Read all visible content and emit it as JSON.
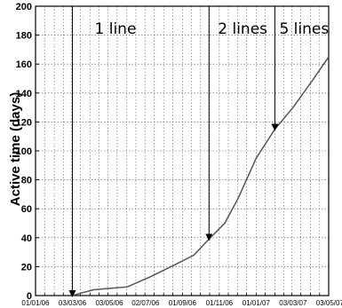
{
  "chart_data": {
    "type": "line",
    "title": "",
    "xlabel": "",
    "ylabel": "Active time (days)",
    "ylim": [
      0,
      200
    ],
    "yticks": [
      0,
      20,
      40,
      60,
      80,
      100,
      120,
      140,
      160,
      180,
      200
    ],
    "xlim": [
      "2006-01-01",
      "2007-05-01"
    ],
    "xtick_labels": [
      "01/01/06",
      "03/03/06",
      "03/05/06",
      "02/07/06",
      "01/09/06",
      "01/11/06",
      "01/01/07",
      "03/03/07",
      "03/05/07"
    ],
    "xtick_dates": [
      "2006-01-01",
      "2006-03-03",
      "2006-05-03",
      "2006-07-02",
      "2006-09-01",
      "2006-11-01",
      "2007-01-01",
      "2007-03-03",
      "2007-05-03"
    ],
    "grid": true,
    "series": [
      {
        "color": "#555555",
        "x": [
          "2006-03-03",
          "2006-03-20",
          "2006-04-07",
          "2006-05-03",
          "2006-06-02",
          "2006-07-10",
          "2006-08-18",
          "2006-09-20",
          "2006-10-15",
          "2006-11-10",
          "2006-12-02",
          "2007-01-01",
          "2007-02-01",
          "2007-03-03",
          "2007-04-03",
          "2007-05-01"
        ],
        "y": [
          0,
          2,
          4,
          5,
          6,
          13,
          21,
          28,
          39,
          50,
          67,
          95,
          115,
          130,
          148,
          165
        ]
      }
    ],
    "annotations": [
      {
        "text": "1 line",
        "x": "2006-03-03"
      },
      {
        "text": "2 lines",
        "x": "2006-10-15"
      },
      {
        "text": "5 lines",
        "x": "2007-02-01"
      }
    ]
  }
}
